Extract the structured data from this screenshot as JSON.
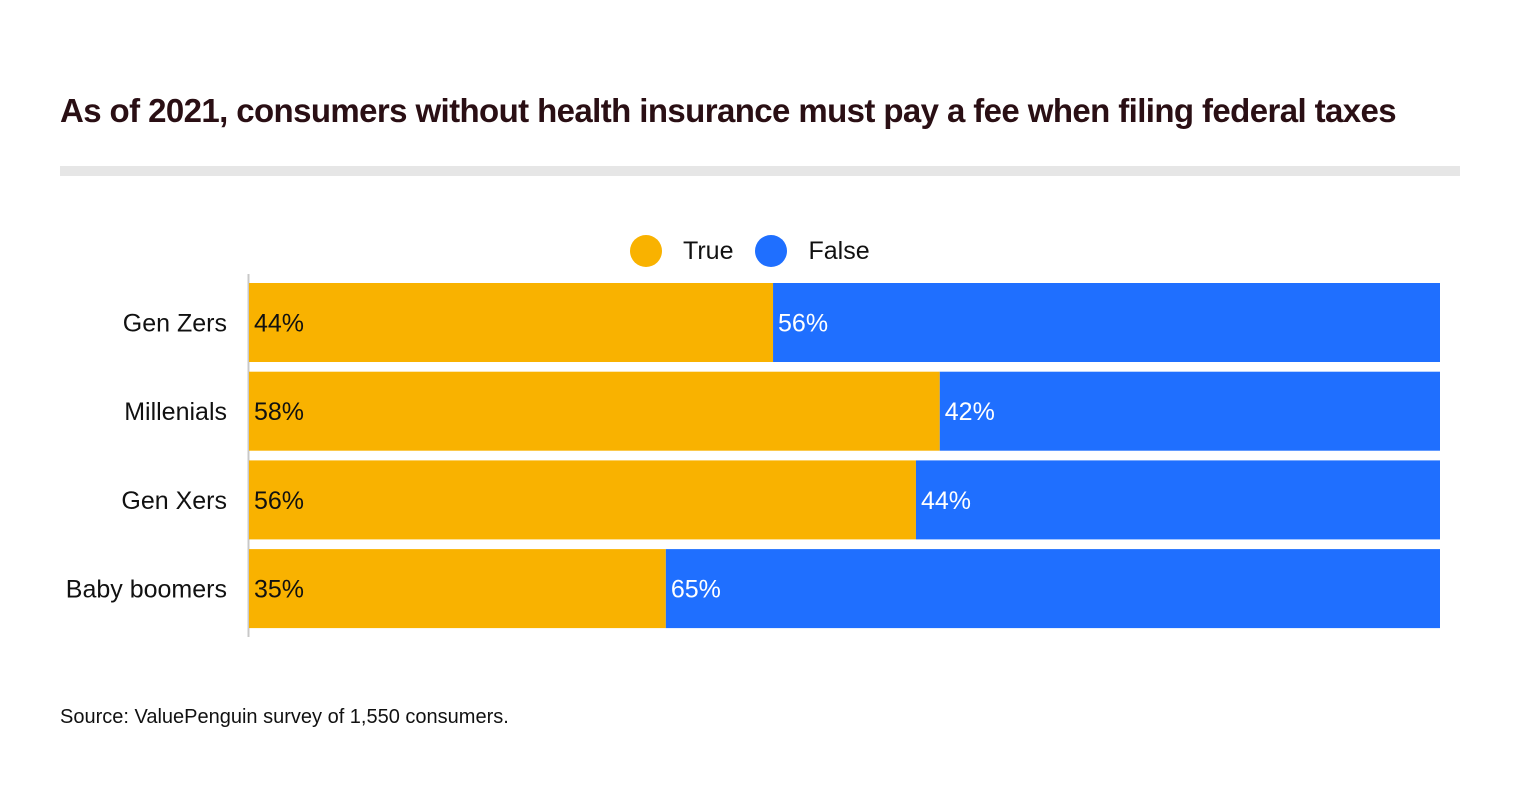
{
  "title": "As of 2021, consumers without health insurance must pay a fee when filing federal taxes",
  "source": "Source: ValuePenguin survey of 1,550 consumers.",
  "colors": {
    "true": "#f9b200",
    "false": "#1f6fff",
    "title": "#2a0f14"
  },
  "chart_data": {
    "type": "bar",
    "orientation": "horizontal",
    "stacked": true,
    "categories": [
      "Gen Zers",
      "Millenials",
      "Gen Xers",
      "Baby boomers"
    ],
    "series": [
      {
        "name": "True",
        "values": [
          44,
          58,
          56,
          35
        ],
        "labels": [
          "44%",
          "58%",
          "56%",
          "35%"
        ]
      },
      {
        "name": "False",
        "values": [
          56,
          42,
          44,
          65
        ],
        "labels": [
          "56%",
          "42%",
          "44%",
          "65%"
        ]
      }
    ],
    "xlim": [
      0,
      100
    ],
    "legend": "top-center",
    "grid": false
  }
}
